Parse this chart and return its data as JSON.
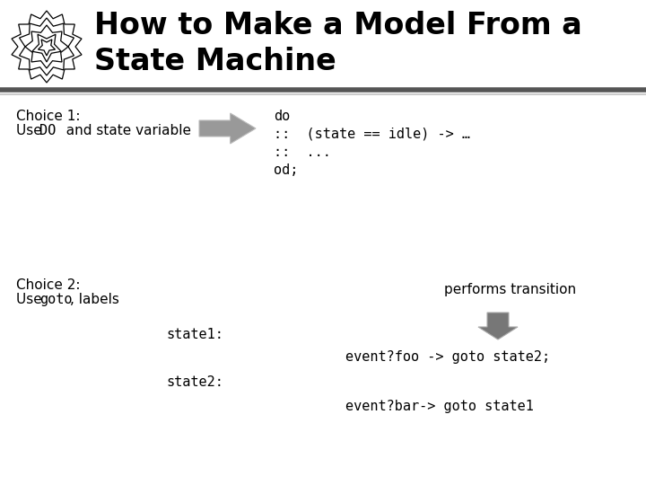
{
  "title_line1": "How to Make a Model From a",
  "title_line2": "State Machine",
  "bg_color": "#ffffff",
  "choice1_label1": "Choice 1:",
  "choice1_label2_normal": "Use ",
  "choice1_label2_mono": "DO",
  "choice1_label2_rest": "  and state variable",
  "choice2_label1": "Choice 2:",
  "choice2_label2_normal": "Use ",
  "choice2_label2_mono": "goto",
  "choice2_label2_rest": ", labels",
  "performs_transition": "performs transition",
  "code1_line1": "do",
  "code1_line2": "::  (state == idle) -> …",
  "code1_line3": "::  ...",
  "code1_line4": "od;",
  "code2_state1": "state1:",
  "code2_event1": "event?foo -> goto state2;",
  "code2_state2": "state2:",
  "code2_event2": "event?bar-> goto state1",
  "arrow1_color": "#999999",
  "arrow2_color": "#777777",
  "sep_dark": "#555555",
  "sep_light": "#aaaaaa"
}
